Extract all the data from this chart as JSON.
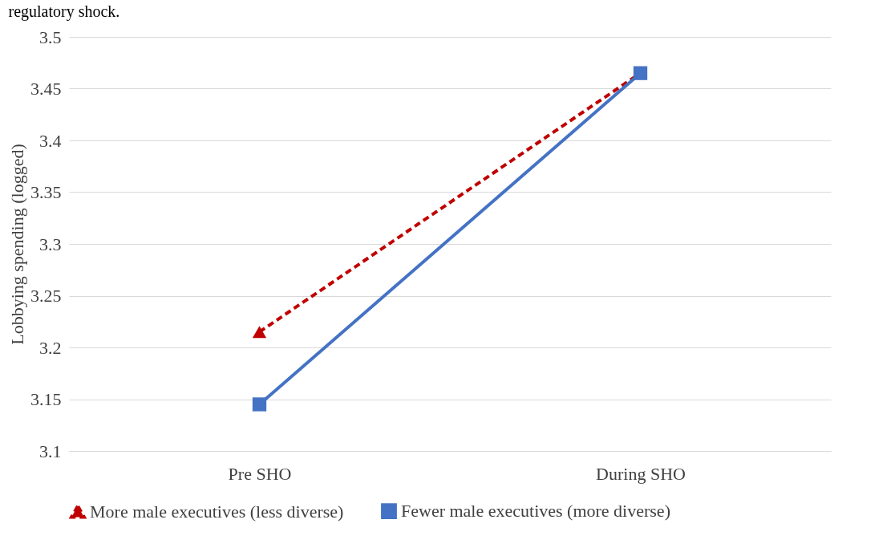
{
  "chart_data": {
    "type": "line",
    "annotations": [
      "regulatory shock."
    ],
    "ylabel": "Lobbying spending (logged)",
    "categories": [
      "Pre SHO",
      "During SHO"
    ],
    "series": [
      {
        "name": "More male executives (less diverse)",
        "color": "#c00000",
        "values": [
          3.215,
          3.465
        ],
        "marker": "triangle",
        "line_style": "dashed"
      },
      {
        "name": "Fewer male executives (more diverse)",
        "color": "#4472c4",
        "values": [
          3.145,
          3.465
        ],
        "marker": "square",
        "line_style": "solid"
      }
    ],
    "ylim": [
      3.1,
      3.5
    ],
    "yticks": [
      3.1,
      3.15,
      3.2,
      3.25,
      3.3,
      3.35,
      3.4,
      3.45,
      3.5
    ],
    "grid": "y",
    "legend": "bottom"
  }
}
